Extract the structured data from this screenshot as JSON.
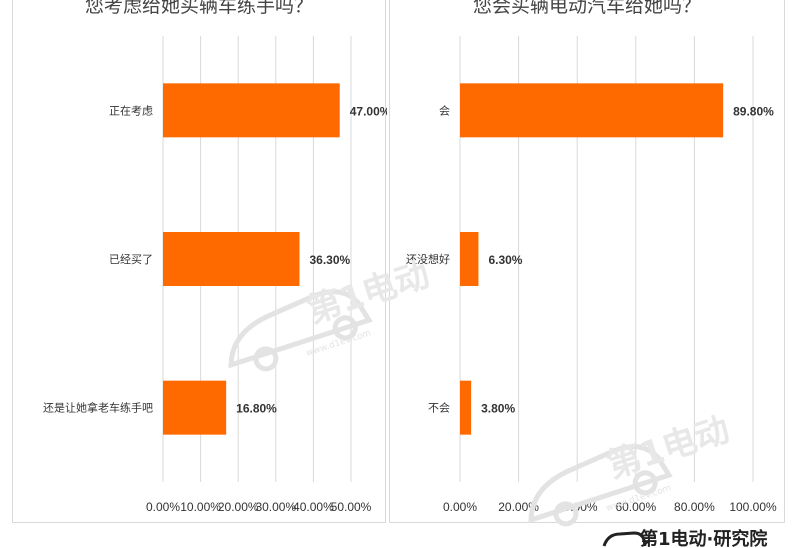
{
  "charts": [
    {
      "title": "您考虑给她买辆车练手吗？"
    },
    {
      "title": "您会买辆电动汽车给她吗？"
    }
  ],
  "chart_data": [
    {
      "type": "bar",
      "orientation": "horizontal",
      "title": "您考虑给她买辆车练手吗？",
      "categories": [
        "正在考虑",
        "已经买了",
        "还是让她拿老车练手吧"
      ],
      "values": [
        47.0,
        36.3,
        16.8
      ],
      "value_labels": [
        "47.00%",
        "36.30%",
        "16.80%"
      ],
      "x_ticks": [
        "0.00%",
        "10.00%",
        "20.00%",
        "30.00%",
        "40.00%",
        "50.00%"
      ],
      "xlim": [
        0,
        50
      ],
      "grid": true,
      "bar_color": "#ff6a00"
    },
    {
      "type": "bar",
      "orientation": "horizontal",
      "title": "您会买辆电动汽车给她吗？",
      "categories": [
        "会",
        "还没想好",
        "不会"
      ],
      "values": [
        89.8,
        6.3,
        3.8
      ],
      "value_labels": [
        "89.80%",
        "6.30%",
        "3.80%"
      ],
      "x_ticks": [
        "0.00%",
        "20.00%",
        "40.00%",
        "60.00%",
        "80.00%",
        "100.00%"
      ],
      "xlim": [
        0,
        100
      ],
      "grid": true,
      "bar_color": "#ff6a00"
    }
  ],
  "watermark": {
    "brand": "第1电动",
    "url": "www.d1ev.com"
  },
  "footer": {
    "brand": "第1电动·研究院"
  },
  "colors": {
    "bar": "#ff6a00",
    "grid": "#d9d9d9",
    "watermark": "#e3e3e3",
    "text": "#333333"
  }
}
